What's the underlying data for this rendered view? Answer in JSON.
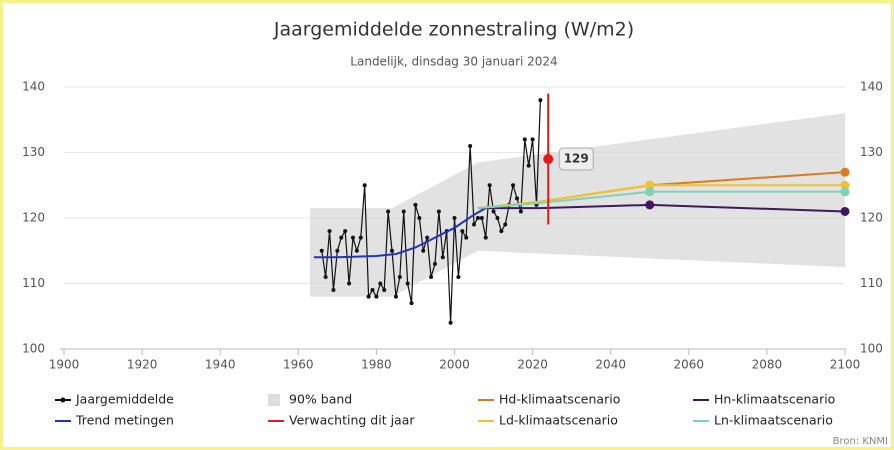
{
  "chart_data": {
    "type": "line",
    "title": "Jaargemiddelde zonnestraling (W/m2)",
    "subtitle": "Landelijk, dinsdag 30 januari 2024",
    "source": "Bron: KNMI",
    "xlim": [
      1900,
      2100
    ],
    "xticks": [
      1900,
      1920,
      1940,
      1960,
      1980,
      2000,
      2020,
      2040,
      2060,
      2080,
      2100
    ],
    "ylim": [
      100,
      140
    ],
    "yticks": [
      100,
      110,
      120,
      130,
      140
    ],
    "grid": true,
    "series": [
      {
        "name": "Jaargemiddelde",
        "type": "line",
        "markers": true,
        "color": "#111111",
        "x": [
          1966,
          1967,
          1968,
          1969,
          1970,
          1971,
          1972,
          1973,
          1974,
          1975,
          1976,
          1977,
          1978,
          1979,
          1980,
          1981,
          1982,
          1983,
          1984,
          1985,
          1986,
          1987,
          1988,
          1989,
          1990,
          1991,
          1992,
          1993,
          1994,
          1995,
          1996,
          1997,
          1998,
          1999,
          2000,
          2001,
          2002,
          2003,
          2004,
          2005,
          2006,
          2007,
          2008,
          2009,
          2010,
          2011,
          2012,
          2013,
          2014,
          2015,
          2016,
          2017,
          2018,
          2019,
          2020,
          2021,
          2022
        ],
        "values": [
          115,
          111,
          118,
          109,
          115,
          117,
          118,
          110,
          117,
          115,
          117,
          125,
          108,
          109,
          108,
          110,
          109,
          121,
          115,
          108,
          111,
          121,
          110,
          107,
          122,
          120,
          115,
          117,
          111,
          113,
          121,
          114,
          118,
          104,
          120,
          111,
          118,
          117,
          131,
          119,
          120,
          120,
          117,
          125,
          121,
          120,
          118,
          119,
          122,
          125,
          123,
          121,
          132,
          128,
          132,
          122,
          138
        ]
      },
      {
        "name": "Trend metingen",
        "type": "line",
        "color": "#2233bb",
        "x": [
          1964,
          1970,
          1980,
          1985,
          1990,
          1995,
          2000,
          2005,
          2008
        ],
        "values": [
          114,
          114,
          114.2,
          114.5,
          115.5,
          117,
          118.5,
          120.5,
          121.5
        ]
      },
      {
        "name": "90% band",
        "type": "area",
        "color": "#dddddd",
        "x": [
          1963,
          1984,
          2006,
          2100
        ],
        "low": [
          108,
          108,
          115,
          112.5
        ],
        "high": [
          121.5,
          121.5,
          128.5,
          136
        ]
      },
      {
        "name": "Verwachting dit jaar",
        "type": "errorbar",
        "color": "#e31a1c",
        "x": [
          2024
        ],
        "values": [
          129
        ],
        "low": [
          119
        ],
        "high": [
          139
        ]
      },
      {
        "name": "Hd-klimaatscenario",
        "type": "line",
        "color": "#d97c1e",
        "x": [
          2006,
          2022,
          2050,
          2100
        ],
        "values": [
          121.5,
          122.5,
          125,
          127
        ]
      },
      {
        "name": "Ld-klimaatscenario",
        "type": "line",
        "color": "#f2c12e",
        "x": [
          2006,
          2022,
          2050,
          2100
        ],
        "values": [
          121.5,
          122.5,
          125,
          125
        ]
      },
      {
        "name": "Hn-klimaatscenario",
        "type": "line",
        "color": "#3d1a5b",
        "x": [
          2006,
          2022,
          2050,
          2100
        ],
        "values": [
          121.5,
          121.5,
          122,
          121
        ]
      },
      {
        "name": "Ln-klimaatscenario",
        "type": "line",
        "color": "#7fd1b9",
        "x": [
          2006,
          2022,
          2050,
          2100
        ],
        "values": [
          121.5,
          122.3,
          124,
          124
        ]
      }
    ]
  }
}
